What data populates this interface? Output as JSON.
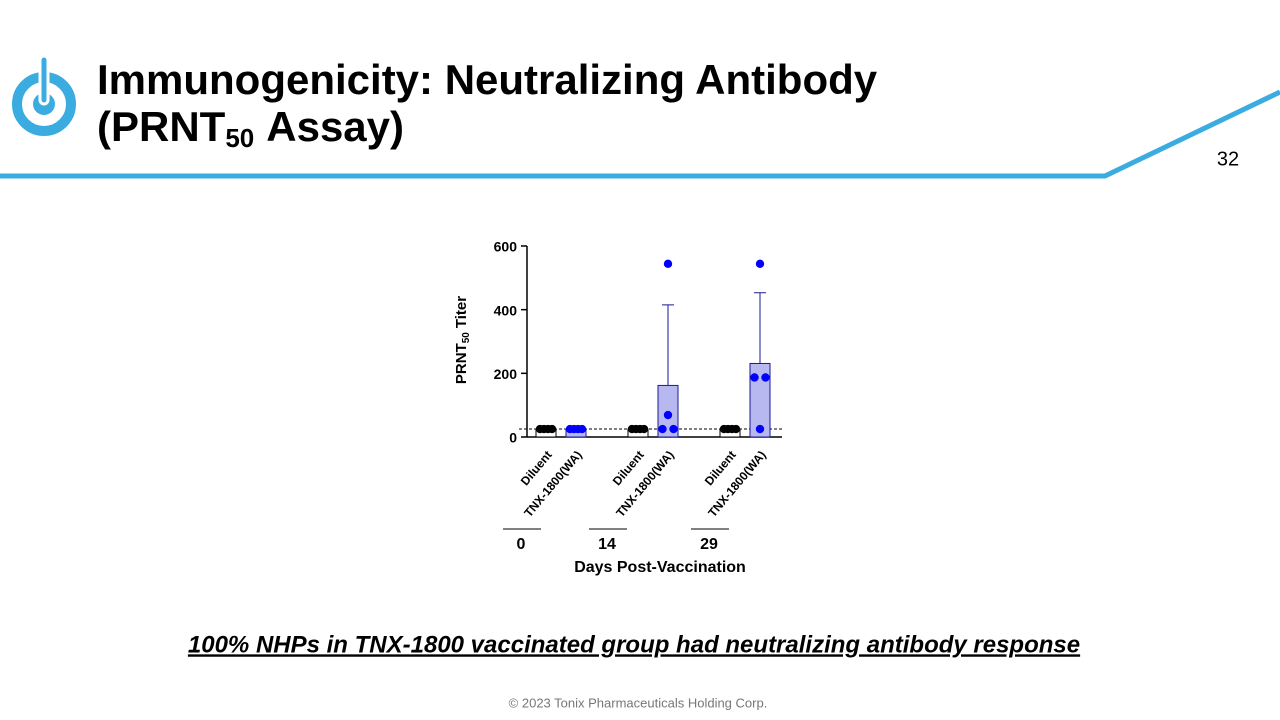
{
  "slide": {
    "title_line1": "Immunogenicity: Neutralizing Antibody",
    "title_line2_pre": "(PRNT",
    "title_line2_sub": "50",
    "title_line2_post": "Assay)",
    "page_number": "32",
    "caption": "100% NHPs in TNX-1800 vaccinated group had neutralizing antibody response",
    "footer": "© 2023 Tonix Pharmaceuticals Holding Corp."
  },
  "chart_data": {
    "type": "bar",
    "ylabel_pre": "PRNT",
    "ylabel_sub": "50",
    "ylabel_post": "Titer",
    "xlabel": "Days Post-Vaccination",
    "categories": [
      "Diluent",
      "TNX-1800(WA)",
      "Diluent",
      "TNX-1800(WA)",
      "Diluent",
      "TNX-1800(WA)"
    ],
    "groups": [
      "0",
      "14",
      "29"
    ],
    "values": [
      25,
      25,
      25,
      162,
      25,
      231
    ],
    "errors": [
      0,
      0,
      0,
      253,
      0,
      222
    ],
    "points": [
      [
        25,
        25,
        25,
        25
      ],
      [
        25,
        25,
        25,
        25
      ],
      [
        25,
        25,
        25,
        25
      ],
      [
        544,
        69,
        25,
        25
      ],
      [
        25,
        25,
        25,
        25
      ],
      [
        544,
        187,
        187,
        25
      ]
    ],
    "point_colors": [
      "#000000",
      "#0000ff",
      "#000000",
      "#0000ff",
      "#000000",
      "#0000ff"
    ],
    "bar_fill": [
      "#ffffff",
      "#b8b8f0",
      "#ffffff",
      "#b8b8f0",
      "#ffffff",
      "#b8b8f0"
    ],
    "bar_stroke": [
      "#000000",
      "#1a1a99",
      "#000000",
      "#1a1a99",
      "#000000",
      "#1a1a99"
    ],
    "reference_line": 25,
    "ylim": [
      0,
      600
    ],
    "yticks": [
      0,
      200,
      400,
      600
    ]
  }
}
